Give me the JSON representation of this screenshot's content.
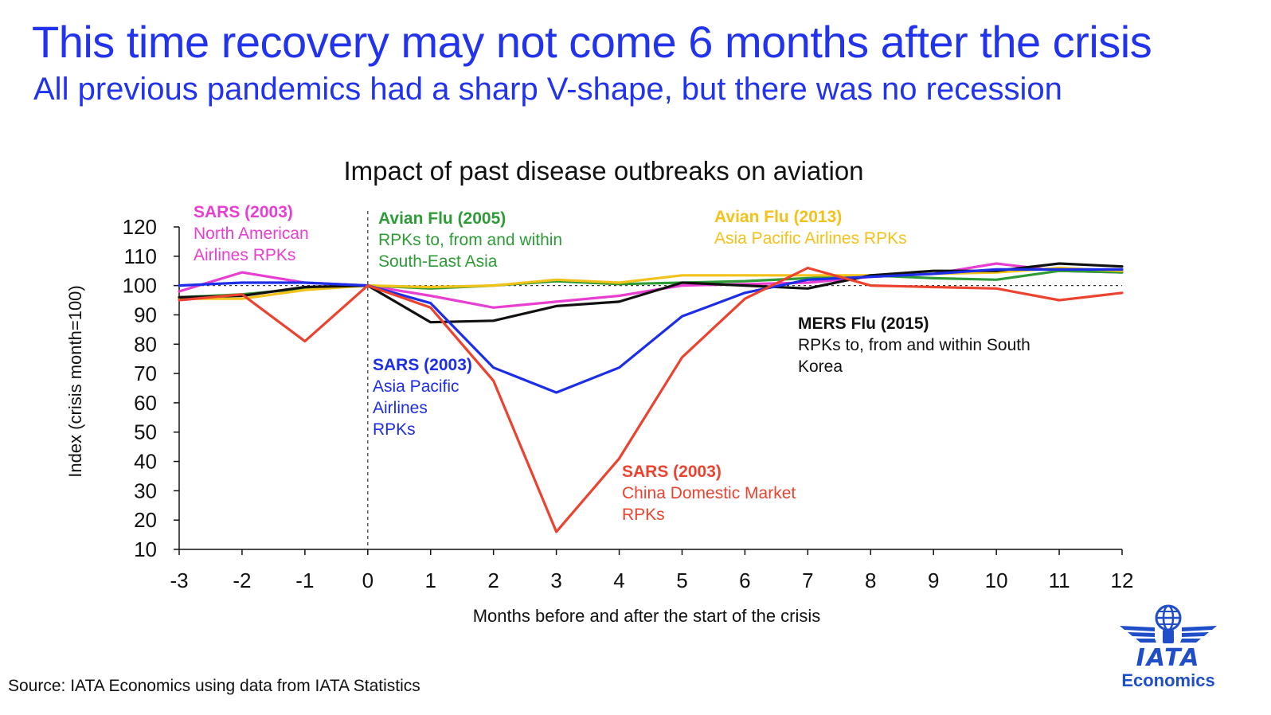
{
  "header": {
    "title": "This time recovery may not come 6 months after the crisis",
    "subtitle": "All previous pandemics had a sharp V-shape, but there was no recession"
  },
  "chart_data": {
    "type": "line",
    "title": "Impact of past disease outbreaks on aviation",
    "xlabel": "Months before and after the start of the crisis",
    "ylabel": "Index (crisis month=100)",
    "x": [
      -3,
      -2,
      -1,
      0,
      1,
      2,
      3,
      4,
      5,
      6,
      7,
      8,
      9,
      10,
      11,
      12
    ],
    "ylim": [
      10,
      120
    ],
    "yticks": [
      10,
      20,
      30,
      40,
      50,
      60,
      70,
      80,
      90,
      100,
      110,
      120
    ],
    "reference_line": 100,
    "crisis_marker_x": 0,
    "grid": false,
    "series": [
      {
        "name": "SARS (2003) North American Airlines RPKs",
        "color": "#e83ed2",
        "values": [
          98,
          104.5,
          101,
          100,
          96.5,
          92.5,
          94.5,
          96.5,
          100,
          100.5,
          101,
          103,
          104,
          107.5,
          105,
          104.5
        ]
      },
      {
        "name": "Avian Flu (2005) RPKs to, from and within South-East Asia",
        "color": "#2e9c36",
        "values": [
          96,
          97,
          99,
          100,
          99,
          100,
          101.5,
          100.5,
          101,
          101.5,
          102.5,
          103.5,
          102.5,
          102,
          105,
          104.5
        ]
      },
      {
        "name": "Avian Flu (2013) Asia Pacific Airlines RPKs",
        "color": "#f3c21a",
        "values": [
          95.5,
          95.5,
          98.5,
          100,
          99.5,
          100,
          102,
          101,
          103.5,
          103.5,
          103.5,
          103.5,
          104,
          104.5,
          106,
          105
        ]
      },
      {
        "name": "MERS Flu (2015) RPKs to, from and within South Korea",
        "color": "#111111",
        "values": [
          96,
          96.5,
          99.5,
          100,
          87.5,
          88,
          93,
          94.5,
          101,
          100,
          99,
          103.5,
          105,
          105,
          107.5,
          106.5
        ]
      },
      {
        "name": "SARS (2003) Asia Pacific Airlines RPKs",
        "color": "#1d2ee8",
        "values": [
          100,
          101,
          101,
          100,
          94,
          72,
          63.5,
          72,
          89.5,
          97.5,
          102,
          103,
          104,
          105.5,
          105.5,
          105.5
        ]
      },
      {
        "name": "SARS (2003) China Domestic Market RPKs",
        "color": "#ec4330",
        "values": [
          95,
          97,
          81,
          100,
          92.5,
          67.5,
          16,
          41,
          75.5,
          95.5,
          106,
          100,
          99.5,
          99,
          95,
          97.5
        ]
      }
    ],
    "annotations": [
      {
        "id": "sars_na",
        "color": "#e83ed2",
        "heading": "SARS (2003)",
        "lines": [
          "North American",
          "Airlines RPKs"
        ]
      },
      {
        "id": "avian2005",
        "color": "#2e9c36",
        "heading": "Avian Flu (2005)",
        "lines": [
          "RPKs to, from and within",
          "South-East Asia"
        ]
      },
      {
        "id": "avian2013",
        "color": "#f3c21a",
        "heading": "Avian Flu (2013)",
        "lines": [
          "Asia Pacific Airlines RPKs"
        ]
      },
      {
        "id": "mers",
        "color": "#111111",
        "heading": "MERS Flu (2015)",
        "lines": [
          "RPKs to, from and within South",
          "Korea"
        ]
      },
      {
        "id": "sars_ap",
        "color": "#1d2ee8",
        "heading": "SARS (2003)",
        "lines": [
          "Asia Pacific",
          "Airlines",
          "RPKs"
        ]
      },
      {
        "id": "sars_china",
        "color": "#ec4330",
        "heading": "SARS (2003)",
        "lines": [
          "China Domestic Market",
          "RPKs"
        ]
      }
    ]
  },
  "footer": {
    "source": "Source: IATA Economics using data from IATA Statistics"
  },
  "logo": {
    "word": "IATA",
    "unit": "Economics",
    "icon": "globe-wings-icon"
  }
}
